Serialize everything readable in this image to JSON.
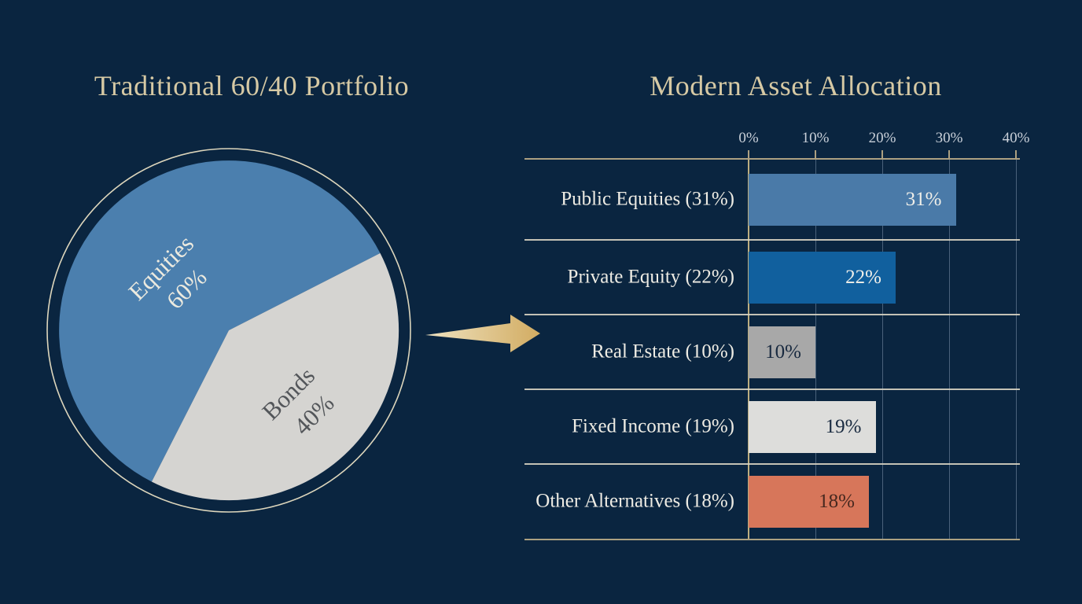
{
  "palette": {
    "background": "#0a2540",
    "title": "#d6c9a4",
    "axis_gold": "#aca081",
    "separator": "#d8d4c2",
    "gridline": "rgba(154,174,196,0.45)",
    "zero_line": "#bcae80",
    "tick_label": "#c9d0d9",
    "row_label": "#eeece4",
    "ring": "#ddd6bc",
    "arrow_from": "#efe3c1",
    "arrow_to": "#d2ac62"
  },
  "left_panel": {
    "title": "Traditional 60/40 Portfolio"
  },
  "right_panel": {
    "title": "Modern Asset Allocation"
  },
  "chart_data": [
    {
      "type": "pie",
      "title": "Traditional 60/40 Portfolio",
      "slices": [
        {
          "label": "Equities",
          "value": 60,
          "pct_label": "60%",
          "color": "#4b7fae",
          "label_color": "#eceadf"
        },
        {
          "label": "Bonds",
          "value": 40,
          "pct_label": "40%",
          "color": "#d5d4d1",
          "label_color": "#53565a"
        }
      ]
    },
    {
      "type": "bar",
      "orientation": "horizontal",
      "title": "Modern Asset Allocation",
      "categories": [
        "Public Equities (31%)",
        "Private Equity (22%)",
        "Real Estate (10%)",
        "Fixed Income (19%)",
        "Other Alternatives (18%)"
      ],
      "values": [
        31,
        22,
        10,
        19,
        18
      ],
      "value_labels": [
        "31%",
        "22%",
        "10%",
        "19%",
        "18%"
      ],
      "bar_colors": [
        "#4a7aa8",
        "#11609e",
        "#a8a8a8",
        "#dddddb",
        "#d7765a"
      ],
      "value_label_colors": [
        "#f0efe9",
        "#f0efe9",
        "#18293f",
        "#18293f",
        "#46281f"
      ],
      "x_ticks": [
        "0%",
        "10%",
        "20%",
        "30%",
        "40%"
      ],
      "xlim": [
        0,
        40
      ],
      "grid": true,
      "xlabel": "",
      "ylabel": "",
      "legend": false
    }
  ]
}
